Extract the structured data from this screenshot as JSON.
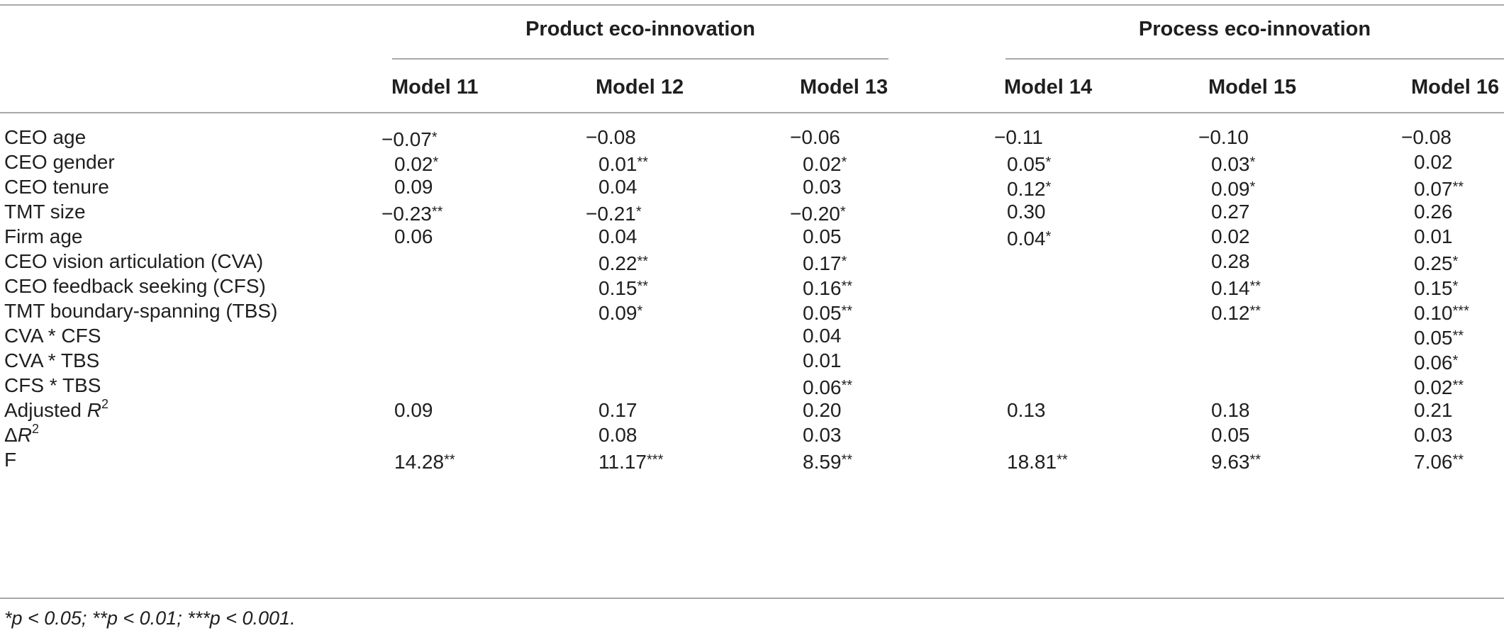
{
  "groups": [
    {
      "label": "Product eco-innovation"
    },
    {
      "label": "Process eco-innovation"
    }
  ],
  "models": [
    "Model 11",
    "Model 12",
    "Model 13",
    "Model 14",
    "Model 15",
    "Model 16"
  ],
  "rows": [
    {
      "label": "CEO age",
      "cells": [
        "−0.07*",
        "−0.08",
        "−0.06",
        "−0.11",
        "−0.10",
        "−0.08"
      ]
    },
    {
      "label": "CEO gender",
      "cells": [
        "0.02*",
        "0.01**",
        "0.02*",
        "0.05*",
        "0.03*",
        "0.02"
      ]
    },
    {
      "label": "CEO tenure",
      "cells": [
        "0.09",
        "0.04",
        "0.03",
        "0.12*",
        "0.09*",
        "0.07**"
      ]
    },
    {
      "label": "TMT size",
      "cells": [
        "−0.23**",
        "−0.21*",
        "−0.20*",
        "0.30",
        "0.27",
        "0.26"
      ]
    },
    {
      "label": "Firm age",
      "cells": [
        "0.06",
        "0.04",
        "0.05",
        "0.04*",
        "0.02",
        "0.01"
      ]
    },
    {
      "label": "CEO vision articulation (CVA)",
      "cells": [
        "",
        "0.22**",
        "0.17*",
        "",
        "0.28",
        "0.25*"
      ]
    },
    {
      "label": "CEO feedback seeking (CFS)",
      "cells": [
        "",
        "0.15**",
        "0.16**",
        "",
        "0.14**",
        "0.15*"
      ]
    },
    {
      "label": "TMT boundary-spanning (TBS)",
      "cells": [
        "",
        "0.09*",
        "0.05**",
        "",
        "0.12**",
        "0.10***"
      ]
    },
    {
      "label": "CVA * CFS",
      "cells": [
        "",
        "",
        "0.04",
        "",
        "",
        "0.05**"
      ]
    },
    {
      "label": "CVA * TBS",
      "cells": [
        "",
        "",
        "0.01",
        "",
        "",
        "0.06*"
      ]
    },
    {
      "label": "CFS * TBS",
      "cells": [
        "",
        "",
        "0.06**",
        "",
        "",
        "0.02**"
      ]
    },
    {
      "label": "Adjusted R",
      "label_sup": "2",
      "cells": [
        "0.09",
        "0.17",
        "0.20",
        "0.13",
        "0.18",
        "0.21"
      ]
    },
    {
      "label": "ΔR",
      "label_sup": "2",
      "cells": [
        "",
        "0.08",
        "0.03",
        "",
        "0.05",
        "0.03"
      ]
    },
    {
      "label": "F",
      "cells": [
        "14.28**",
        "11.17***",
        "8.59**",
        "18.81**",
        "9.63**",
        "7.06**"
      ]
    }
  ],
  "footnote": "*p < 0.05; **p < 0.01; ***p < 0.001."
}
